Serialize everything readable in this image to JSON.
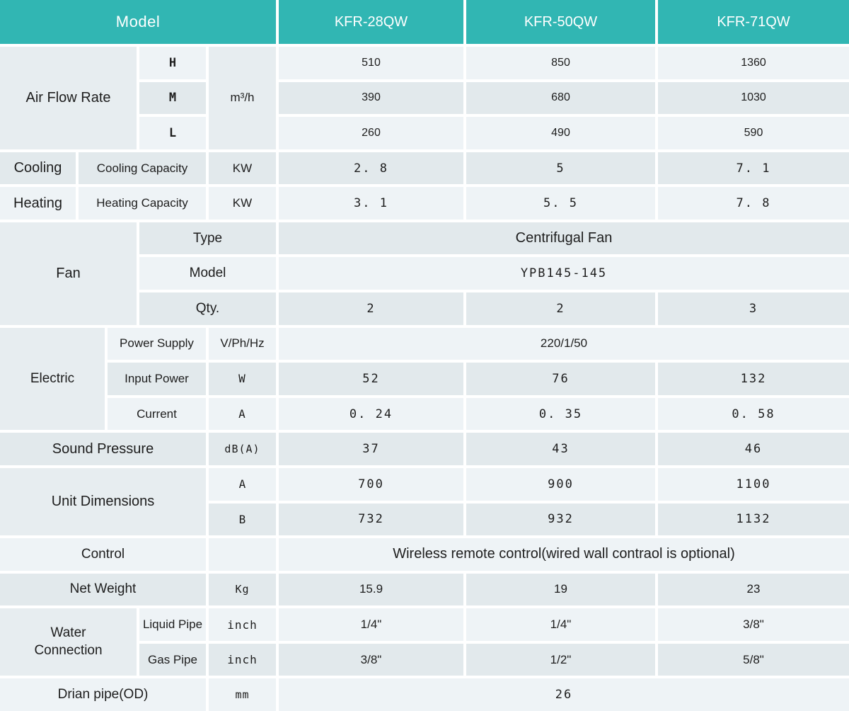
{
  "colors": {
    "header_bg": "#31b6b3",
    "header_text": "#ffffff",
    "row_light": "#eef3f6",
    "row_dark": "#e2e9ec",
    "cell_merged": "#e7edf0",
    "text_dark": "#1d1d1d",
    "page_bg": "#ffffff"
  },
  "header": {
    "model_label": "Model",
    "models": [
      "KFR-28QW",
      "KFR-50QW",
      "KFR-71QW"
    ]
  },
  "air_flow": {
    "label": "Air Flow Rate",
    "unit": "m³/h",
    "speeds": [
      {
        "name": "H",
        "values": [
          "510",
          "850",
          "1360"
        ]
      },
      {
        "name": "M",
        "values": [
          "390",
          "680",
          "1030"
        ]
      },
      {
        "name": "L",
        "values": [
          "260",
          "490",
          "590"
        ]
      }
    ]
  },
  "cooling": {
    "label": "Cooling",
    "capacity_label": "Cooling Capacity",
    "unit": "KW",
    "values": [
      "2. 8",
      "5",
      "7. 1"
    ]
  },
  "heating": {
    "label": "Heating",
    "capacity_label": "Heating Capacity",
    "unit": "KW",
    "values": [
      "3. 1",
      "5. 5",
      "7. 8"
    ]
  },
  "fan": {
    "label": "Fan",
    "type_label": "Type",
    "type_value": "Centrifugal Fan",
    "model_label": "Model",
    "model_value": "YPB145-145",
    "qty_label": "Qty.",
    "qty_values": [
      "2",
      "2",
      "3"
    ]
  },
  "electric": {
    "label": "Electric",
    "power_supply_label": "Power Supply",
    "power_supply_unit": "V/Ph/Hz",
    "power_supply_value": "220/1/50",
    "input_power_label": "Input Power",
    "input_power_unit": "W",
    "input_power_values": [
      "52",
      "76",
      "132"
    ],
    "current_label": "Current",
    "current_unit": "A",
    "current_values": [
      "0. 24",
      "0. 35",
      "0. 58"
    ]
  },
  "sound": {
    "label": "Sound Pressure",
    "unit": "dB(A)",
    "values": [
      "37",
      "43",
      "46"
    ]
  },
  "dimensions": {
    "label": "Unit Dimensions",
    "rows": [
      {
        "name": "A",
        "values": [
          "700",
          "900",
          "1100"
        ]
      },
      {
        "name": "B",
        "values": [
          "732",
          "932",
          "1132"
        ]
      }
    ]
  },
  "control": {
    "label": "Control",
    "value": "Wireless remote control(wired wall contraol is optional)"
  },
  "net_weight": {
    "label": "Net Weight",
    "unit": "Kg",
    "values": [
      "15.9",
      "19",
      "23"
    ]
  },
  "water": {
    "label": "Water Connection",
    "liquid_label": "Liquid Pipe",
    "liquid_unit": "inch",
    "liquid_values": [
      "1/4\"",
      "1/4\"",
      "3/8\""
    ],
    "gas_label": "Gas Pipe",
    "gas_unit": "inch",
    "gas_values": [
      "3/8\"",
      "1/2\"",
      "5/8\""
    ]
  },
  "drain": {
    "label": "Drian pipe(OD)",
    "unit": "mm",
    "value": "26"
  }
}
